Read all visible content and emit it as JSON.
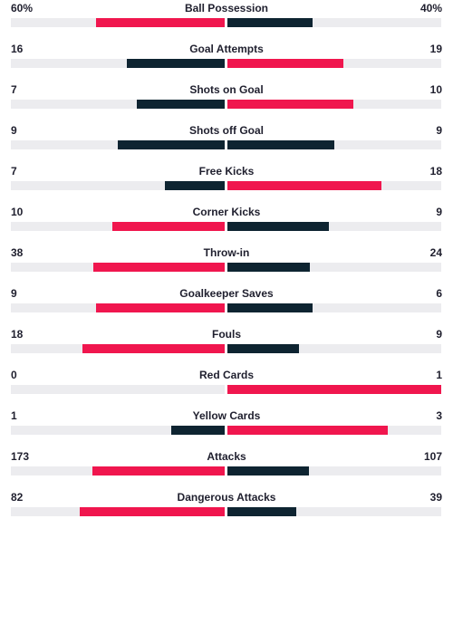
{
  "colors": {
    "leader": "#f0164e",
    "trailer": "#0e2431",
    "track": "#ececef"
  },
  "stats": [
    {
      "label": "Ball Possession",
      "home": "60%",
      "away": "40%",
      "home_value": 60,
      "away_value": 40
    },
    {
      "label": "Goal Attempts",
      "home": "16",
      "away": "19",
      "home_value": 16,
      "away_value": 19
    },
    {
      "label": "Shots on Goal",
      "home": "7",
      "away": "10",
      "home_value": 7,
      "away_value": 10
    },
    {
      "label": "Shots off Goal",
      "home": "9",
      "away": "9",
      "home_value": 9,
      "away_value": 9
    },
    {
      "label": "Free Kicks",
      "home": "7",
      "away": "18",
      "home_value": 7,
      "away_value": 18
    },
    {
      "label": "Corner Kicks",
      "home": "10",
      "away": "9",
      "home_value": 10,
      "away_value": 9
    },
    {
      "label": "Throw-in",
      "home": "38",
      "away": "24",
      "home_value": 38,
      "away_value": 24
    },
    {
      "label": "Goalkeeper Saves",
      "home": "9",
      "away": "6",
      "home_value": 9,
      "away_value": 6
    },
    {
      "label": "Fouls",
      "home": "18",
      "away": "9",
      "home_value": 18,
      "away_value": 9
    },
    {
      "label": "Red Cards",
      "home": "0",
      "away": "1",
      "home_value": 0,
      "away_value": 1
    },
    {
      "label": "Yellow Cards",
      "home": "1",
      "away": "3",
      "home_value": 1,
      "away_value": 3
    },
    {
      "label": "Attacks",
      "home": "173",
      "away": "107",
      "home_value": 173,
      "away_value": 107
    },
    {
      "label": "Dangerous Attacks",
      "home": "82",
      "away": "39",
      "home_value": 82,
      "away_value": 39
    }
  ]
}
